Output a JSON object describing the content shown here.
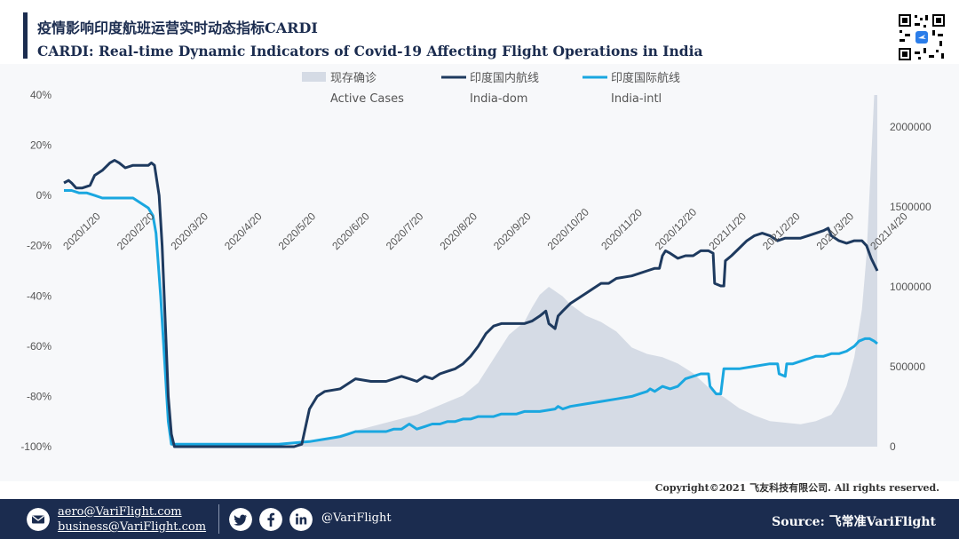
{
  "header": {
    "title_cn": "疫情影响印度航班运营实时动态指标CARDI",
    "title_en": "CARDI: Real-time Dynamic Indicators of Covid-19 Affecting Flight Operations in India"
  },
  "chart_data": {
    "type": "line",
    "x_ticks": [
      "2020/1/20",
      "2020/2/20",
      "2020/3/20",
      "2020/4/20",
      "2020/5/20",
      "2020/6/20",
      "2020/7/20",
      "2020/8/20",
      "2020/9/20",
      "2020/10/20",
      "2020/11/20",
      "2020/12/20",
      "2021/1/20",
      "2021/2/20",
      "2021/3/20",
      "2021/4/20"
    ],
    "y_left": {
      "ticks": [
        "40%",
        "20%",
        "0%",
        "-20%",
        "-40%",
        "-60%",
        "-80%",
        "-100%"
      ],
      "range": [
        -100,
        40
      ]
    },
    "y_right": {
      "ticks": [
        "2000000",
        "1500000",
        "1000000",
        "500000",
        "0"
      ],
      "range": [
        0,
        2200000
      ]
    },
    "legend": [
      {
        "name_cn": "现存确诊",
        "name_en": "Active Cases",
        "color": "#d5dbe5",
        "kind": "area"
      },
      {
        "name_cn": "印度国内航线",
        "name_en": "India-dom",
        "color": "#1e3a5f",
        "kind": "line"
      },
      {
        "name_cn": "印度国际航线",
        "name_en": "India-intl",
        "color": "#1aa7e0",
        "kind": "line"
      }
    ],
    "series": [
      {
        "name": "India-dom",
        "axis": "left",
        "points": [
          [
            0,
            5
          ],
          [
            3,
            6
          ],
          [
            5,
            5
          ],
          [
            8,
            3
          ],
          [
            12,
            3
          ],
          [
            17,
            4
          ],
          [
            20,
            8
          ],
          [
            25,
            10
          ],
          [
            30,
            13
          ],
          [
            33,
            14
          ],
          [
            36,
            13
          ],
          [
            40,
            11
          ],
          [
            45,
            12
          ],
          [
            50,
            12
          ],
          [
            55,
            12
          ],
          [
            57,
            13
          ],
          [
            59,
            12
          ],
          [
            62,
            0
          ],
          [
            64,
            -20
          ],
          [
            66,
            -50
          ],
          [
            68,
            -80
          ],
          [
            70,
            -95
          ],
          [
            72,
            -100
          ],
          [
            80,
            -100
          ],
          [
            100,
            -100
          ],
          [
            120,
            -100
          ],
          [
            140,
            -100
          ],
          [
            150,
            -100
          ],
          [
            155,
            -99
          ],
          [
            160,
            -85
          ],
          [
            165,
            -80
          ],
          [
            170,
            -78
          ],
          [
            180,
            -77
          ],
          [
            185,
            -75
          ],
          [
            190,
            -73
          ],
          [
            200,
            -74
          ],
          [
            210,
            -74
          ],
          [
            220,
            -72
          ],
          [
            225,
            -73
          ],
          [
            230,
            -74
          ],
          [
            235,
            -72
          ],
          [
            240,
            -73
          ],
          [
            245,
            -71
          ],
          [
            250,
            -70
          ],
          [
            255,
            -69
          ],
          [
            260,
            -67
          ],
          [
            265,
            -64
          ],
          [
            270,
            -60
          ],
          [
            275,
            -55
          ],
          [
            280,
            -52
          ],
          [
            285,
            -51
          ],
          [
            295,
            -51
          ],
          [
            300,
            -51
          ],
          [
            305,
            -50
          ],
          [
            310,
            -48
          ],
          [
            314,
            -46
          ],
          [
            316,
            -51
          ],
          [
            320,
            -53
          ],
          [
            322,
            -48
          ],
          [
            325,
            -46
          ],
          [
            330,
            -43
          ],
          [
            335,
            -41
          ],
          [
            340,
            -39
          ],
          [
            345,
            -37
          ],
          [
            350,
            -35
          ],
          [
            355,
            -35
          ],
          [
            360,
            -33
          ],
          [
            370,
            -32
          ],
          [
            380,
            -30
          ],
          [
            385,
            -29
          ],
          [
            388,
            -29
          ],
          [
            390,
            -24
          ],
          [
            392,
            -22
          ],
          [
            395,
            -23
          ],
          [
            400,
            -25
          ],
          [
            405,
            -24
          ],
          [
            410,
            -24
          ],
          [
            415,
            -22
          ],
          [
            420,
            -22
          ],
          [
            423,
            -23
          ],
          [
            424,
            -35
          ],
          [
            428,
            -36
          ],
          [
            430,
            -36
          ],
          [
            431,
            -26
          ],
          [
            435,
            -24
          ],
          [
            440,
            -21
          ],
          [
            445,
            -18
          ],
          [
            450,
            -16
          ],
          [
            455,
            -15
          ],
          [
            460,
            -16
          ],
          [
            465,
            -18
          ],
          [
            470,
            -17
          ],
          [
            475,
            -17
          ],
          [
            480,
            -17
          ],
          [
            485,
            -16
          ],
          [
            490,
            -15
          ],
          [
            495,
            -14
          ],
          [
            498,
            -13
          ],
          [
            500,
            -16
          ],
          [
            505,
            -18
          ],
          [
            510,
            -19
          ],
          [
            515,
            -18
          ],
          [
            520,
            -18
          ],
          [
            523,
            -20
          ],
          [
            526,
            -25
          ],
          [
            530,
            -30
          ]
        ]
      },
      {
        "name": "India-intl",
        "axis": "left",
        "points": [
          [
            0,
            2
          ],
          [
            5,
            2
          ],
          [
            10,
            1
          ],
          [
            15,
            1
          ],
          [
            20,
            0
          ],
          [
            25,
            -1
          ],
          [
            30,
            -1
          ],
          [
            35,
            -1
          ],
          [
            40,
            -1
          ],
          [
            45,
            -1
          ],
          [
            50,
            -3
          ],
          [
            55,
            -5
          ],
          [
            58,
            -8
          ],
          [
            60,
            -15
          ],
          [
            63,
            -40
          ],
          [
            66,
            -70
          ],
          [
            68,
            -90
          ],
          [
            70,
            -99
          ],
          [
            75,
            -99
          ],
          [
            90,
            -99
          ],
          [
            100,
            -99
          ],
          [
            120,
            -99
          ],
          [
            140,
            -99
          ],
          [
            160,
            -98
          ],
          [
            170,
            -97
          ],
          [
            180,
            -96
          ],
          [
            185,
            -95
          ],
          [
            190,
            -94
          ],
          [
            195,
            -94
          ],
          [
            200,
            -94
          ],
          [
            210,
            -94
          ],
          [
            215,
            -93
          ],
          [
            220,
            -93
          ],
          [
            225,
            -91
          ],
          [
            230,
            -93
          ],
          [
            235,
            -92
          ],
          [
            240,
            -91
          ],
          [
            245,
            -91
          ],
          [
            250,
            -90
          ],
          [
            255,
            -90
          ],
          [
            260,
            -89
          ],
          [
            265,
            -89
          ],
          [
            270,
            -88
          ],
          [
            275,
            -88
          ],
          [
            280,
            -88
          ],
          [
            285,
            -87
          ],
          [
            290,
            -87
          ],
          [
            295,
            -87
          ],
          [
            300,
            -86
          ],
          [
            305,
            -86
          ],
          [
            310,
            -86
          ],
          [
            320,
            -85
          ],
          [
            322,
            -84
          ],
          [
            325,
            -85
          ],
          [
            330,
            -84
          ],
          [
            340,
            -83
          ],
          [
            350,
            -82
          ],
          [
            360,
            -81
          ],
          [
            370,
            -80
          ],
          [
            375,
            -79
          ],
          [
            380,
            -78
          ],
          [
            382,
            -77
          ],
          [
            385,
            -78
          ],
          [
            390,
            -76
          ],
          [
            395,
            -77
          ],
          [
            400,
            -76
          ],
          [
            405,
            -73
          ],
          [
            410,
            -72
          ],
          [
            415,
            -71
          ],
          [
            420,
            -71
          ],
          [
            421,
            -76
          ],
          [
            425,
            -79
          ],
          [
            428,
            -79
          ],
          [
            430,
            -69
          ],
          [
            440,
            -69
          ],
          [
            450,
            -68
          ],
          [
            460,
            -67
          ],
          [
            465,
            -67
          ],
          [
            466,
            -71
          ],
          [
            470,
            -72
          ],
          [
            471,
            -67
          ],
          [
            475,
            -67
          ],
          [
            480,
            -66
          ],
          [
            485,
            -65
          ],
          [
            490,
            -64
          ],
          [
            495,
            -64
          ],
          [
            500,
            -63
          ],
          [
            505,
            -63
          ],
          [
            510,
            -62
          ],
          [
            515,
            -60
          ],
          [
            518,
            -58
          ],
          [
            522,
            -57
          ],
          [
            525,
            -57
          ],
          [
            528,
            -58
          ],
          [
            530,
            -59
          ]
        ]
      },
      {
        "name": "Active Cases",
        "axis": "right",
        "points": [
          [
            0,
            0
          ],
          [
            150,
            0
          ],
          [
            160,
            30000
          ],
          [
            170,
            50000
          ],
          [
            190,
            100000
          ],
          [
            210,
            150000
          ],
          [
            230,
            200000
          ],
          [
            250,
            280000
          ],
          [
            260,
            320000
          ],
          [
            270,
            400000
          ],
          [
            280,
            550000
          ],
          [
            290,
            700000
          ],
          [
            300,
            780000
          ],
          [
            305,
            870000
          ],
          [
            310,
            950000
          ],
          [
            316,
            1000000
          ],
          [
            325,
            940000
          ],
          [
            330,
            890000
          ],
          [
            340,
            820000
          ],
          [
            350,
            780000
          ],
          [
            360,
            720000
          ],
          [
            370,
            620000
          ],
          [
            380,
            580000
          ],
          [
            390,
            560000
          ],
          [
            400,
            520000
          ],
          [
            410,
            460000
          ],
          [
            420,
            370000
          ],
          [
            430,
            310000
          ],
          [
            440,
            240000
          ],
          [
            450,
            195000
          ],
          [
            460,
            160000
          ],
          [
            470,
            150000
          ],
          [
            480,
            140000
          ],
          [
            490,
            160000
          ],
          [
            500,
            200000
          ],
          [
            505,
            270000
          ],
          [
            510,
            380000
          ],
          [
            515,
            560000
          ],
          [
            520,
            860000
          ],
          [
            523,
            1200000
          ],
          [
            526,
            1800000
          ],
          [
            528,
            2200000
          ],
          [
            530,
            2200000
          ],
          [
            530,
            0
          ]
        ]
      }
    ]
  },
  "copyright": "Copyright©2021 飞友科技有限公司. All rights reserved.",
  "footer": {
    "email_1": "aero@VariFlight.com",
    "email_2": "business@VariFlight.com",
    "handle": "@VariFlight",
    "source": "Source: 飞常准VariFlight",
    "icons": [
      "mail-icon",
      "twitter-icon",
      "facebook-icon",
      "linkedin-icon"
    ]
  }
}
